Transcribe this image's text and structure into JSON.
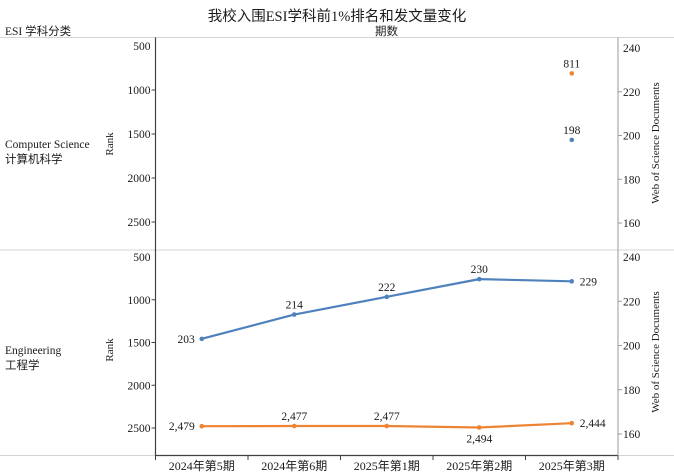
{
  "chart_data": {
    "type": "line",
    "title": "我校入围ESI学科前1%排名和发文量变化",
    "row_header": "ESI 学科分类",
    "x_axis_title": "期数",
    "categories": [
      "2024年第5期",
      "2024年第6期",
      "2025年第1期",
      "2025年第2期",
      "2025年第3期"
    ],
    "axes": {
      "left": {
        "label": "Rank",
        "ticks": [
          500,
          1000,
          1500,
          2000,
          2500
        ],
        "min": 500,
        "max": 2500,
        "inverted": true
      },
      "right": {
        "label": "Web of Science Documents",
        "ticks": [
          240,
          220,
          200,
          180,
          160
        ],
        "min": 160,
        "max": 240
      }
    },
    "colors": {
      "rank_series": "#EE8433",
      "documents_series": "#4F81BD"
    },
    "legend": "none",
    "grid": "off",
    "panels": [
      {
        "name_en": "Computer Science",
        "name_zh": "计算机科学",
        "series": [
          {
            "id": "rank",
            "axis": "left",
            "color_key": "rank_series",
            "values": [
              null,
              null,
              null,
              null,
              811
            ],
            "labels": [
              null,
              null,
              null,
              null,
              "811"
            ],
            "label_pos": [
              null,
              null,
              null,
              null,
              "above"
            ],
            "line": false
          },
          {
            "id": "documents",
            "axis": "right",
            "color_key": "documents_series",
            "values": [
              null,
              null,
              null,
              null,
              198
            ],
            "labels": [
              null,
              null,
              null,
              null,
              "198"
            ],
            "label_pos": [
              null,
              null,
              null,
              null,
              "above"
            ],
            "line": false
          }
        ]
      },
      {
        "name_en": "Engineering",
        "name_zh": "工程学",
        "series": [
          {
            "id": "documents",
            "axis": "right",
            "color_key": "documents_series",
            "values": [
              203,
              214,
              222,
              230,
              229
            ],
            "labels": [
              "203",
              "214",
              "222",
              "230",
              "229"
            ],
            "label_pos": [
              "left",
              "above",
              "above",
              "above",
              "right"
            ],
            "line": true
          },
          {
            "id": "rank",
            "axis": "left",
            "color_key": "rank_series",
            "values": [
              2479,
              2477,
              2477,
              2494,
              2444
            ],
            "labels": [
              "2,479",
              "2,477",
              "2,477",
              "2,494",
              "2,444"
            ],
            "label_pos": [
              "left",
              "above",
              "above",
              "below",
              "right"
            ],
            "line": true
          }
        ]
      }
    ]
  }
}
